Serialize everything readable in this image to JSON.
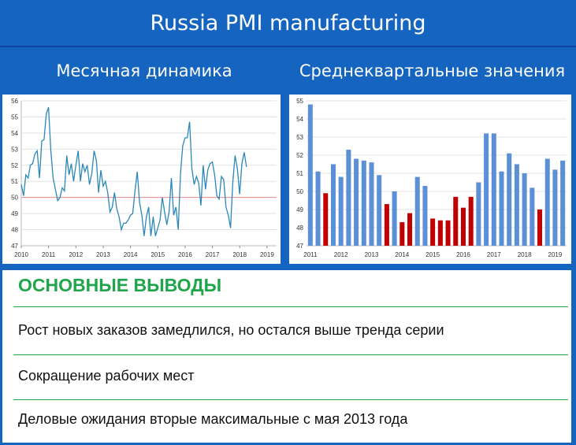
{
  "title": "Russia PMI manufacturing",
  "left_subtitle": "Месячная динамика",
  "right_subtitle": "Среднеквартальные значения",
  "conclusions": {
    "heading": "ОСНОВНЫЕ ВЫВОДЫ",
    "points": [
      "Рост новых заказов замедлился, но остался выше тренда серии",
      "Сокращение рабочих мест",
      "Деловые ожидания вторые максимальные с мая 2013 года"
    ]
  },
  "colors": {
    "banner": "#1565c0",
    "line": "#2a88b8",
    "bar_blue": "#5b8fd6",
    "bar_red": "#c00000",
    "reference": "#e58a8a",
    "accent_green": "#1fa64a"
  },
  "chart_data": [
    {
      "type": "line",
      "ylim": [
        47,
        56
      ],
      "yticks": [
        47,
        48,
        49,
        50,
        51,
        52,
        53,
        54,
        55,
        56
      ],
      "xlim": [
        2010.0,
        2019.35
      ],
      "xticks": [
        "2010",
        "2011",
        "2012",
        "2013",
        "2014",
        "2015",
        "2016",
        "2017",
        "2018",
        "2019"
      ],
      "reference_line": 50,
      "series": [
        {
          "x_start": 2010.0,
          "x_step": 0.0833,
          "values": [
            50.8,
            50.1,
            51.4,
            51.2,
            52.0,
            52.1,
            52.7,
            52.9,
            51.2,
            53.5,
            53.6,
            55.2,
            55.6,
            52.9,
            51.2,
            50.5,
            49.8,
            50.0,
            50.6,
            50.4,
            52.6,
            51.4,
            52.1,
            51.0,
            52.0,
            52.9,
            51.0,
            52.1,
            51.6,
            52.0,
            50.8,
            51.5,
            52.9,
            52.3,
            50.3,
            51.7,
            50.7,
            51.0,
            50.3,
            49.1,
            49.4,
            50.3,
            49.3,
            48.8,
            48.0,
            48.4,
            48.4,
            48.6,
            48.9,
            49.0,
            50.4,
            51.6,
            49.7,
            48.9,
            47.6,
            48.8,
            49.4,
            47.6,
            48.8,
            47.6,
            48.1,
            48.6,
            50.0,
            49.1,
            48.3,
            49.1,
            51.2,
            48.9,
            49.4,
            48.0,
            51.5,
            53.2,
            53.7,
            53.7,
            54.7,
            51.8,
            50.8,
            51.3,
            50.9,
            49.5,
            52.0,
            50.5,
            51.7,
            52.1,
            52.2,
            51.4,
            50.1,
            49.9,
            51.3,
            51.1,
            49.4,
            48.9,
            48.1,
            50.9,
            52.6,
            51.8,
            50.2,
            52.1,
            52.8,
            51.9
          ]
        }
      ]
    },
    {
      "type": "bar",
      "ylim": [
        47,
        55
      ],
      "yticks": [
        47,
        48,
        49,
        50,
        51,
        52,
        53,
        54,
        55
      ],
      "xticks": [
        "2011",
        "2012",
        "2013",
        "2014",
        "2015",
        "2016",
        "2017",
        "2018",
        "2019"
      ],
      "quarters_per_year": 4,
      "values": [
        54.8,
        51.1,
        49.9,
        51.5,
        50.8,
        52.3,
        51.8,
        51.7,
        51.6,
        50.9,
        49.3,
        50.0,
        48.3,
        48.8,
        50.8,
        50.3,
        48.5,
        48.4,
        48.4,
        49.7,
        49.1,
        49.7,
        50.5,
        53.2,
        53.2,
        51.1,
        52.1,
        51.5,
        51.0,
        50.2,
        49.0,
        51.8,
        51.2,
        51.7
      ],
      "below_50_color": "#c00000",
      "above_50_color": "#5b8fd6"
    }
  ]
}
